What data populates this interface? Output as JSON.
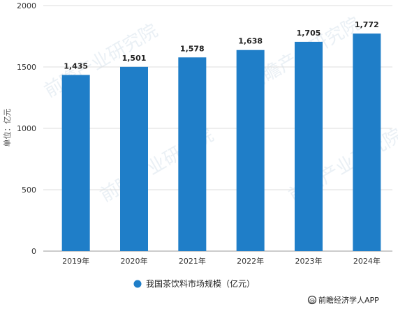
{
  "chart_data": {
    "type": "bar",
    "categories": [
      "2019年",
      "2020年",
      "2021年",
      "2022年",
      "2023年",
      "2024年"
    ],
    "values": [
      1435,
      1501,
      1578,
      1638,
      1705,
      1772
    ],
    "value_labels": [
      "1,435",
      "1,501",
      "1,578",
      "1,638",
      "1,705",
      "1,772"
    ],
    "series": [
      {
        "name": "我国茶饮料市场规模（亿元）",
        "values": [
          1435,
          1501,
          1578,
          1638,
          1705,
          1772
        ]
      }
    ],
    "ylabel": "单位：亿元",
    "ylim": [
      0,
      2000
    ],
    "yticks": [
      "0",
      "500",
      "1000",
      "1500",
      "2000"
    ],
    "ytick_values": [
      0,
      500,
      1000,
      1500,
      2000
    ],
    "grid": true,
    "legend_position": "bottom",
    "bar_color": "#1f7ec8"
  },
  "source": {
    "icon": "at-icon",
    "text": "前瞻经济学人APP"
  },
  "watermark": {
    "text": "前瞻产业研究院"
  }
}
